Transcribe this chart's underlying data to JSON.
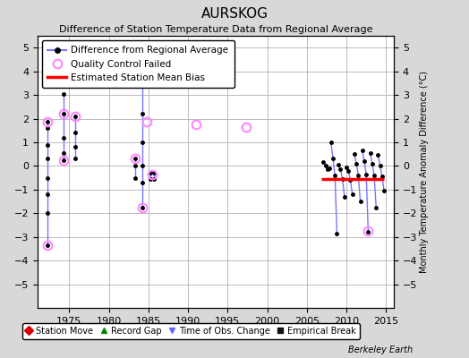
{
  "title": "AURSKOG",
  "subtitle": "Difference of Station Temperature Data from Regional Average",
  "ylabel_right": "Monthly Temperature Anomaly Difference (°C)",
  "xlim": [
    1971,
    2016
  ],
  "ylim": [
    -6,
    5.5
  ],
  "yticks": [
    -5,
    -4,
    -3,
    -2,
    -1,
    0,
    1,
    2,
    3,
    4,
    5
  ],
  "xticks": [
    1975,
    1980,
    1985,
    1990,
    1995,
    2000,
    2005,
    2010,
    2015
  ],
  "background_color": "#d8d8d8",
  "plot_bg_color": "#ffffff",
  "grid_color": "#bbbbbb",
  "line_color": "#7777ff",
  "dot_color": "#000000",
  "qc_color": "#ff88ff",
  "bias_color": "#ff0000",
  "bias_x_start": 2006.8,
  "bias_x_end": 2014.7,
  "bias_y": -0.55,
  "early_segments": [
    {
      "x": 1972.3,
      "y_top": 1.85,
      "y_bot": -3.35,
      "dots": [
        1.85,
        1.6,
        0.9,
        0.3,
        -0.5,
        -1.2,
        -2.0,
        -3.35
      ]
    },
    {
      "x": 1974.3,
      "y_top": 3.05,
      "y_bot": 0.25,
      "dots": [
        3.05,
        2.2,
        1.2,
        0.55,
        0.25
      ]
    },
    {
      "x": 1975.8,
      "y_top": 2.1,
      "y_bot": 0.3,
      "dots": [
        2.1,
        1.4,
        0.8,
        0.3
      ]
    },
    {
      "x": 1983.3,
      "y_top": 0.3,
      "y_bot": -0.5,
      "dots": [
        0.3,
        0.0,
        -0.5
      ]
    },
    {
      "x": 1984.2,
      "y_top": 4.6,
      "y_bot": -1.75,
      "dots": [
        4.6,
        3.5,
        2.2,
        1.0,
        0.0,
        -0.7,
        -1.75
      ]
    },
    {
      "x": 1985.3,
      "y_top": -0.3,
      "y_bot": -0.55,
      "dots": [
        -0.3,
        -0.55
      ]
    },
    {
      "x": 1985.7,
      "y_top": -0.3,
      "y_bot": -0.55,
      "dots": [
        -0.3,
        -0.55
      ]
    }
  ],
  "qc_points": [
    [
      1972.3,
      1.85
    ],
    [
      1972.3,
      -3.35
    ],
    [
      1974.3,
      2.2
    ],
    [
      1974.3,
      0.25
    ],
    [
      1975.8,
      2.1
    ],
    [
      1983.3,
      0.3
    ],
    [
      1984.2,
      -1.75
    ],
    [
      1984.8,
      1.85
    ],
    [
      1985.5,
      -0.35
    ],
    [
      1991.0,
      1.75
    ],
    [
      1997.3,
      1.65
    ],
    [
      2012.7,
      -2.75
    ]
  ],
  "dense_x": [
    2007.1,
    2007.35,
    2007.6,
    2007.85,
    2008.05,
    2008.3,
    2008.55,
    2008.8,
    2009.0,
    2009.25,
    2009.5,
    2009.75,
    2010.0,
    2010.25,
    2010.5,
    2010.75,
    2011.0,
    2011.25,
    2011.5,
    2011.75,
    2012.0,
    2012.25,
    2012.5,
    2012.75,
    2013.0,
    2013.25,
    2013.5,
    2013.75,
    2014.0,
    2014.25,
    2014.5,
    2014.75
  ],
  "dense_y": [
    0.15,
    0.0,
    -0.15,
    -0.1,
    1.0,
    0.3,
    -0.4,
    -2.85,
    0.05,
    -0.15,
    -0.55,
    -1.3,
    -0.05,
    -0.2,
    -0.6,
    -1.2,
    0.5,
    0.1,
    -0.4,
    -1.5,
    0.65,
    0.2,
    -0.35,
    -2.8,
    0.55,
    0.1,
    -0.4,
    -1.75,
    0.45,
    0.0,
    -0.45,
    -1.05
  ],
  "dense_seg_starts": [
    0,
    4,
    8,
    12,
    16,
    20,
    24,
    28
  ],
  "footer_text": "Berkeley Earth",
  "legend_line_label": "Difference from Regional Average",
  "legend_qc_label": "Quality Control Failed",
  "legend_bias_label": "Estimated Station Mean Bias",
  "bottom_legend": [
    {
      "label": "Station Move",
      "marker": "D",
      "color": "#dd0000"
    },
    {
      "label": "Record Gap",
      "marker": "^",
      "color": "#008800"
    },
    {
      "label": "Time of Obs. Change",
      "marker": "v",
      "color": "#6666ff"
    },
    {
      "label": "Empirical Break",
      "marker": "s",
      "color": "#111111"
    }
  ]
}
